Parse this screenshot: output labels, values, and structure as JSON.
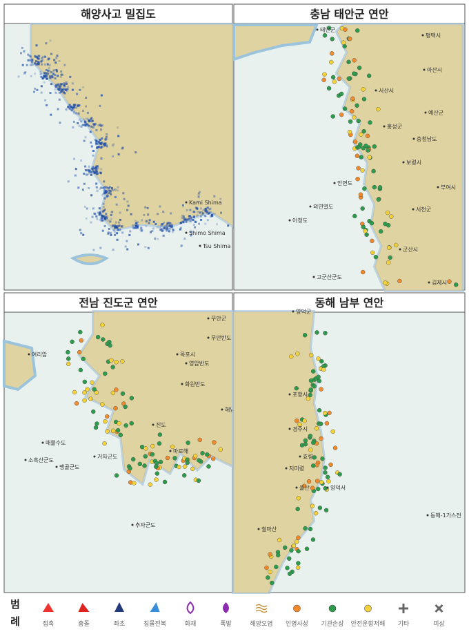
{
  "panels": [
    {
      "title": "해양사고 밀집도",
      "places": [
        "Kami Shima",
        "Shimo Shima",
        "Tsu Shima"
      ]
    },
    {
      "title": "충남 태안군 연안",
      "places": [
        "평택시",
        "아산시",
        "서산시",
        "예산군",
        "홍성군",
        "충청남도",
        "보령시",
        "부여시",
        "서천군",
        "군산시",
        "김제시",
        "태안군",
        "안면도",
        "외연열도",
        "어청도",
        "고군산군도"
      ]
    },
    {
      "title": "전남 진도군 연안",
      "places": [
        "무안군",
        "무안반도",
        "목포시",
        "영암반도",
        "화원반도",
        "해남군",
        "진도",
        "마로해",
        "추자군도",
        "매물수도",
        "맹골군도",
        "거차군도",
        "여리암",
        "소흑산군도"
      ]
    },
    {
      "title": "동해 남부 연안",
      "places": [
        "영덕군",
        "포항시",
        "경주시",
        "효령",
        "지미령",
        "울산",
        "양덕서",
        "동해-1가스전",
        "철마산"
      ]
    }
  ],
  "legend": {
    "title_lines": [
      "범",
      "례"
    ],
    "items": [
      "접촉",
      "충돌",
      "좌초",
      "침몰전복",
      "화재",
      "폭발",
      "해양오염",
      "인명사상",
      "기관손상",
      "안전운항저해",
      "기타",
      "미상"
    ]
  }
}
